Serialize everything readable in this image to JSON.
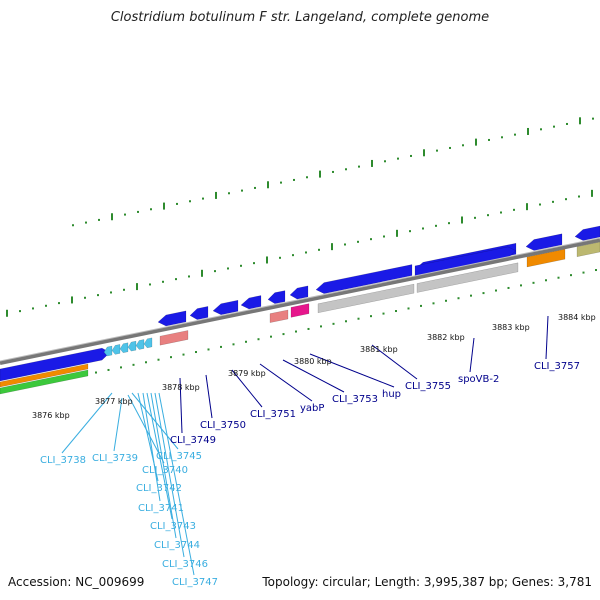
{
  "title": "Clostridium botulinum F str. Langeland, complete genome",
  "accession": "Accession: NC_009699",
  "topology": "Topology: circular; Length: 3,995,387 bp; Genes: 3,781",
  "colors": {
    "backbone": "#808080",
    "cds": "#1a1ae6",
    "cds_alt": "#4fc3e8",
    "rna_grey": "#c4c4c4",
    "salmon": "#e88080",
    "magenta": "#e6178c",
    "orange": "#f08a00",
    "green": "#3cc83c",
    "olive": "#bcb870",
    "tick_green": "#2e8b2e",
    "label_dark": "#00008b",
    "label_light": "#3aaee0"
  },
  "ticks": [
    "3876 kbp",
    "3877 kbp",
    "3878 kbp",
    "3879 kbp",
    "3880 kbp",
    "3881 kbp",
    "3882 kbp",
    "3883 kbp",
    "3884 kbp"
  ],
  "labels": {
    "light": [
      "CLI_3738",
      "CLI_3739",
      "CLI_3740",
      "CLI_3745",
      "CLI_3742",
      "CLI_3741",
      "CLI_3743",
      "CLI_3744",
      "CLI_3746",
      "CLI_3747"
    ],
    "dark": [
      "CLI_3749",
      "CLI_3750",
      "CLI_3751",
      "yabP",
      "CLI_3753",
      "hup",
      "CLI_3755",
      "spoVB-2",
      "CLI_3757"
    ]
  }
}
